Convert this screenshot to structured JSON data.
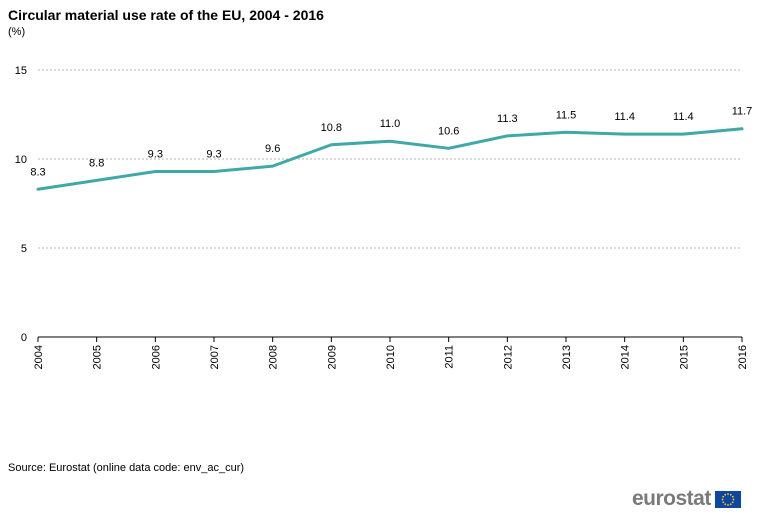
{
  "chart_data": {
    "type": "line",
    "title": "Circular material use rate of the EU, 2004 - 2016",
    "ylabel": "(%)",
    "xlabel": "",
    "ylim": [
      0,
      15
    ],
    "yticks": [
      0,
      5,
      10,
      15
    ],
    "grid": true,
    "categories": [
      "2004",
      "2005",
      "2006",
      "2007",
      "2008",
      "2009",
      "2010",
      "2011",
      "2012",
      "2013",
      "2014",
      "2015",
      "2016"
    ],
    "series": [
      {
        "name": "Circular material use rate",
        "values": [
          8.3,
          8.8,
          9.3,
          9.3,
          9.6,
          10.8,
          11.0,
          10.6,
          11.3,
          11.5,
          11.4,
          11.4,
          11.7
        ],
        "labels": [
          "8.3",
          "8.8",
          "9.3",
          "9.3",
          "9.6",
          "10.8",
          "11.0",
          "10.6",
          "11.3",
          "11.5",
          "11.4",
          "11.4",
          "11.7"
        ],
        "color": "#40a8a8"
      }
    ]
  },
  "source": "Source: Eurostat (online data code: env_ac_cur)",
  "logo": {
    "text": "eurostat",
    "flag_color": "#0e47a1",
    "star_color": "#ffcc00"
  }
}
